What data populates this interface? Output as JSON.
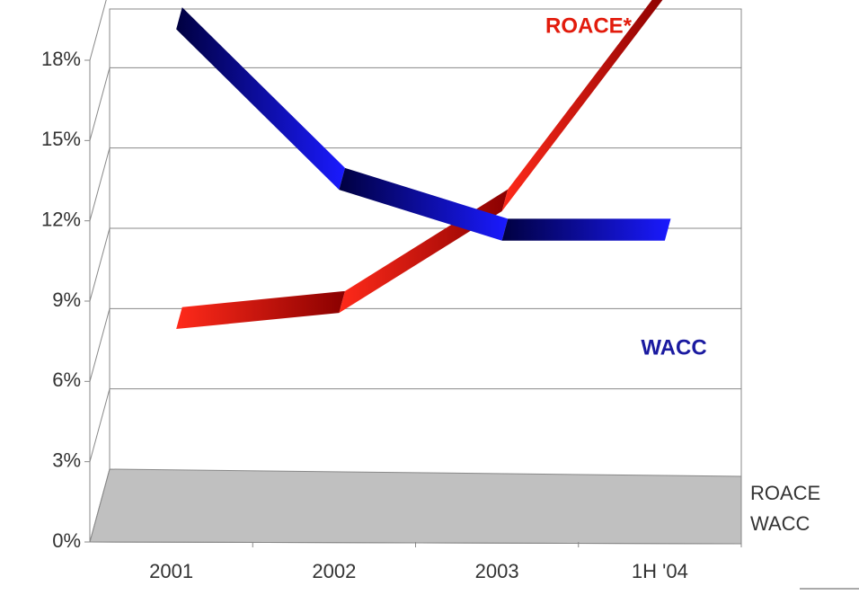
{
  "chart_data": {
    "type": "line3d",
    "categories": [
      "2001",
      "2002",
      "2003",
      "1H '04"
    ],
    "series": [
      {
        "name": "ROACE",
        "color": "url(#gr)",
        "values": [
          5.6,
          6.2,
          10.0,
          18.0
        ]
      },
      {
        "name": "WACC",
        "color": "url(#gb)",
        "values": [
          16.8,
          10.8,
          8.9,
          8.9
        ]
      }
    ],
    "annotations": [
      "ROACE*",
      "WACC"
    ],
    "ylim": [
      0,
      18
    ],
    "yticks": [
      {
        "value": 0,
        "label": "0%"
      },
      {
        "value": 3,
        "label": "3%"
      },
      {
        "value": 6,
        "label": "6%"
      },
      {
        "value": 9,
        "label": "9%"
      },
      {
        "value": 12,
        "label": "12%"
      },
      {
        "value": 15,
        "label": "15%"
      },
      {
        "value": 18,
        "label": "18%"
      }
    ],
    "grid": true
  }
}
